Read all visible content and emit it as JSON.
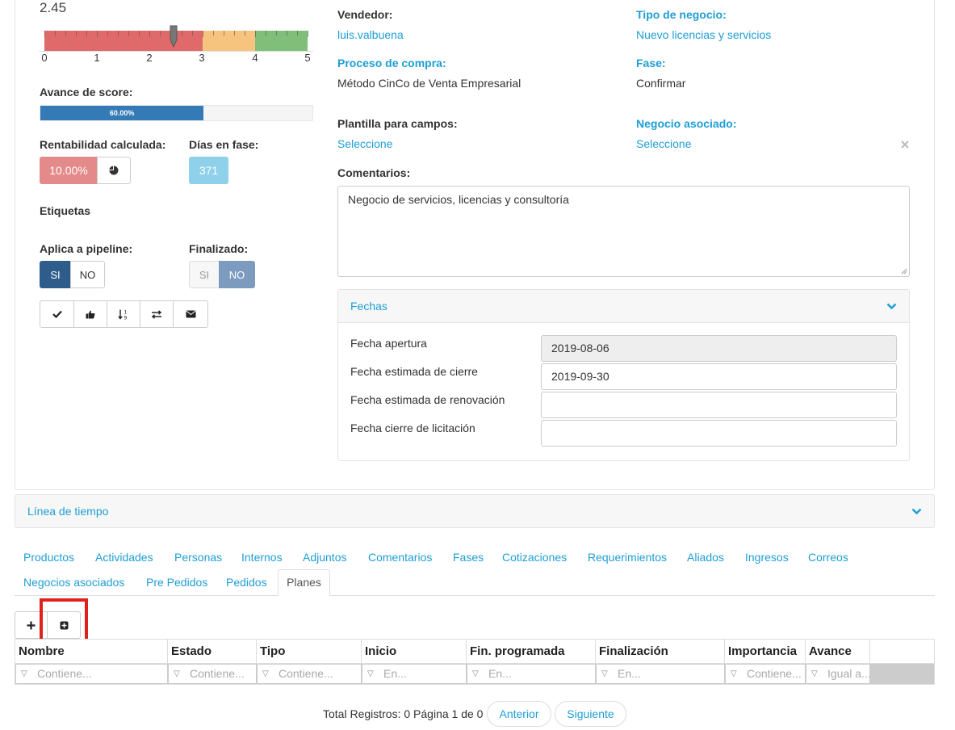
{
  "score": {
    "value": "2.45",
    "ticks": [
      "0",
      "1",
      "2",
      "3",
      "4",
      "5"
    ],
    "needle_value": 2.45
  },
  "avance": {
    "label": "Avance de score:",
    "percent_text": "60.00%",
    "fraction": 0.6
  },
  "rentabilidad": {
    "label": "Rentabilidad calculada:",
    "value": "10.00%"
  },
  "dias": {
    "label": "Días en fase:",
    "value": "371"
  },
  "etiquetas": {
    "label": "Etiquetas"
  },
  "pipeline": {
    "label": "Aplica a pipeline:",
    "si": "SI",
    "no": "NO"
  },
  "finalizado": {
    "label": "Finalizado:",
    "si": "SI",
    "no": "NO"
  },
  "fields": {
    "vendedor_label": "Vendedor:",
    "vendedor": "luis.valbuena",
    "tipo_label": "Tipo de negocio:",
    "tipo": "Nuevo licencias y servicios",
    "proceso_label": "Proceso de compra:",
    "proceso": "Método CinCo de Venta Empresarial",
    "fase_label": "Fase:",
    "fase": "Confirmar",
    "plantilla_label": "Plantilla para campos:",
    "plantilla": "Seleccione",
    "asociado_label": "Negocio asociado:",
    "asociado": "Seleccione",
    "comentarios_label": "Comentarios:",
    "comentarios": "Negocio de servicios, licencias y consultoría"
  },
  "fechas": {
    "title": "Fechas",
    "rows": [
      {
        "label": "Fecha apertura",
        "value": "2019-08-06"
      },
      {
        "label": "Fecha estimada de cierre",
        "value": "2019-09-30"
      },
      {
        "label": "Fecha estimada de renovación",
        "value": ""
      },
      {
        "label": "Fecha cierre de licitación",
        "value": ""
      }
    ]
  },
  "timeline": {
    "title": "Línea de tiempo"
  },
  "tabs": [
    "Productos",
    "Actividades",
    "Personas",
    "Internos",
    "Adjuntos",
    "Comentarios",
    "Fases",
    "Cotizaciones",
    "Requerimientos",
    "Aliados",
    "Ingresos",
    "Correos",
    "Negocios asociados",
    "Pre Pedidos",
    "Pedidos",
    "Planes"
  ],
  "table": {
    "columns": [
      "Nombre",
      "Estado",
      "Tipo",
      "Inicio",
      "Fin. programada",
      "Finalización",
      "Importancia",
      "Avance"
    ],
    "filters": [
      "Contiene...",
      "Contiene...",
      "Contiene...",
      "En...",
      "En...",
      "En...",
      "Contiene...",
      "Igual a..."
    ]
  },
  "pager": {
    "summary": "Total Registros: 0 Página 1 de 0",
    "prev": "Anterior",
    "next": "Siguiente"
  },
  "colors": {
    "accent": "#1e9ed4",
    "primary": "#2e5d8c",
    "danger": "#e58a8a",
    "info": "#8fd0ea",
    "highlight": "#e0201a"
  }
}
